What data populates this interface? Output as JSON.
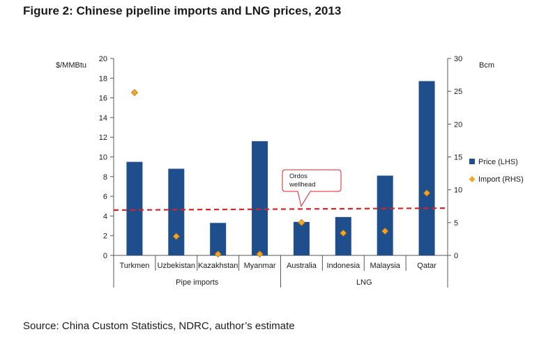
{
  "figure": {
    "title": "Figure 2: Chinese pipeline imports and LNG prices, 2013",
    "source": "Source: China Custom Statistics, NDRC, author’s estimate"
  },
  "chart_data": {
    "type": "bar",
    "categories": [
      "Turkmen",
      "Uzbekistan",
      "Kazakhstan",
      "Myanmar",
      "Australia",
      "Indonesia",
      "Malaysia",
      "Qatar"
    ],
    "groups": [
      {
        "label": "Pipe imports",
        "categories": [
          "Turkmen",
          "Uzbekistan",
          "Kazakhstan",
          "Myanmar"
        ]
      },
      {
        "label": "LNG",
        "categories": [
          "Australia",
          "Indonesia",
          "Malaysia",
          "Qatar"
        ]
      }
    ],
    "series": [
      {
        "name": "Price (LHS)",
        "kind": "bar",
        "axis": "left",
        "color": "#1f4e8c",
        "values": [
          9.5,
          8.8,
          3.3,
          11.6,
          3.4,
          3.9,
          8.1,
          17.7
        ]
      },
      {
        "name": "Import (RHS)",
        "kind": "marker",
        "axis": "right",
        "color": "#f5a623",
        "values": [
          24.8,
          2.9,
          0.2,
          0.2,
          5.0,
          3.4,
          3.7,
          9.5
        ]
      }
    ],
    "left_axis": {
      "label": "$/MMBtu",
      "min": 0,
      "max": 20,
      "ticks": [
        0,
        2,
        4,
        6,
        8,
        10,
        12,
        14,
        16,
        18,
        20
      ]
    },
    "right_axis": {
      "label": "Bcm",
      "min": 0,
      "max": 30,
      "ticks": [
        0,
        5,
        10,
        15,
        20,
        25,
        30
      ]
    },
    "reference_line": {
      "style": "dashed",
      "color": "#e02020",
      "start": 4.6,
      "end": 4.8
    },
    "annotation": {
      "text_lines": [
        "Ordos",
        "wellhead"
      ],
      "color": "#e02020"
    },
    "legend_position": "right",
    "grid": false
  }
}
